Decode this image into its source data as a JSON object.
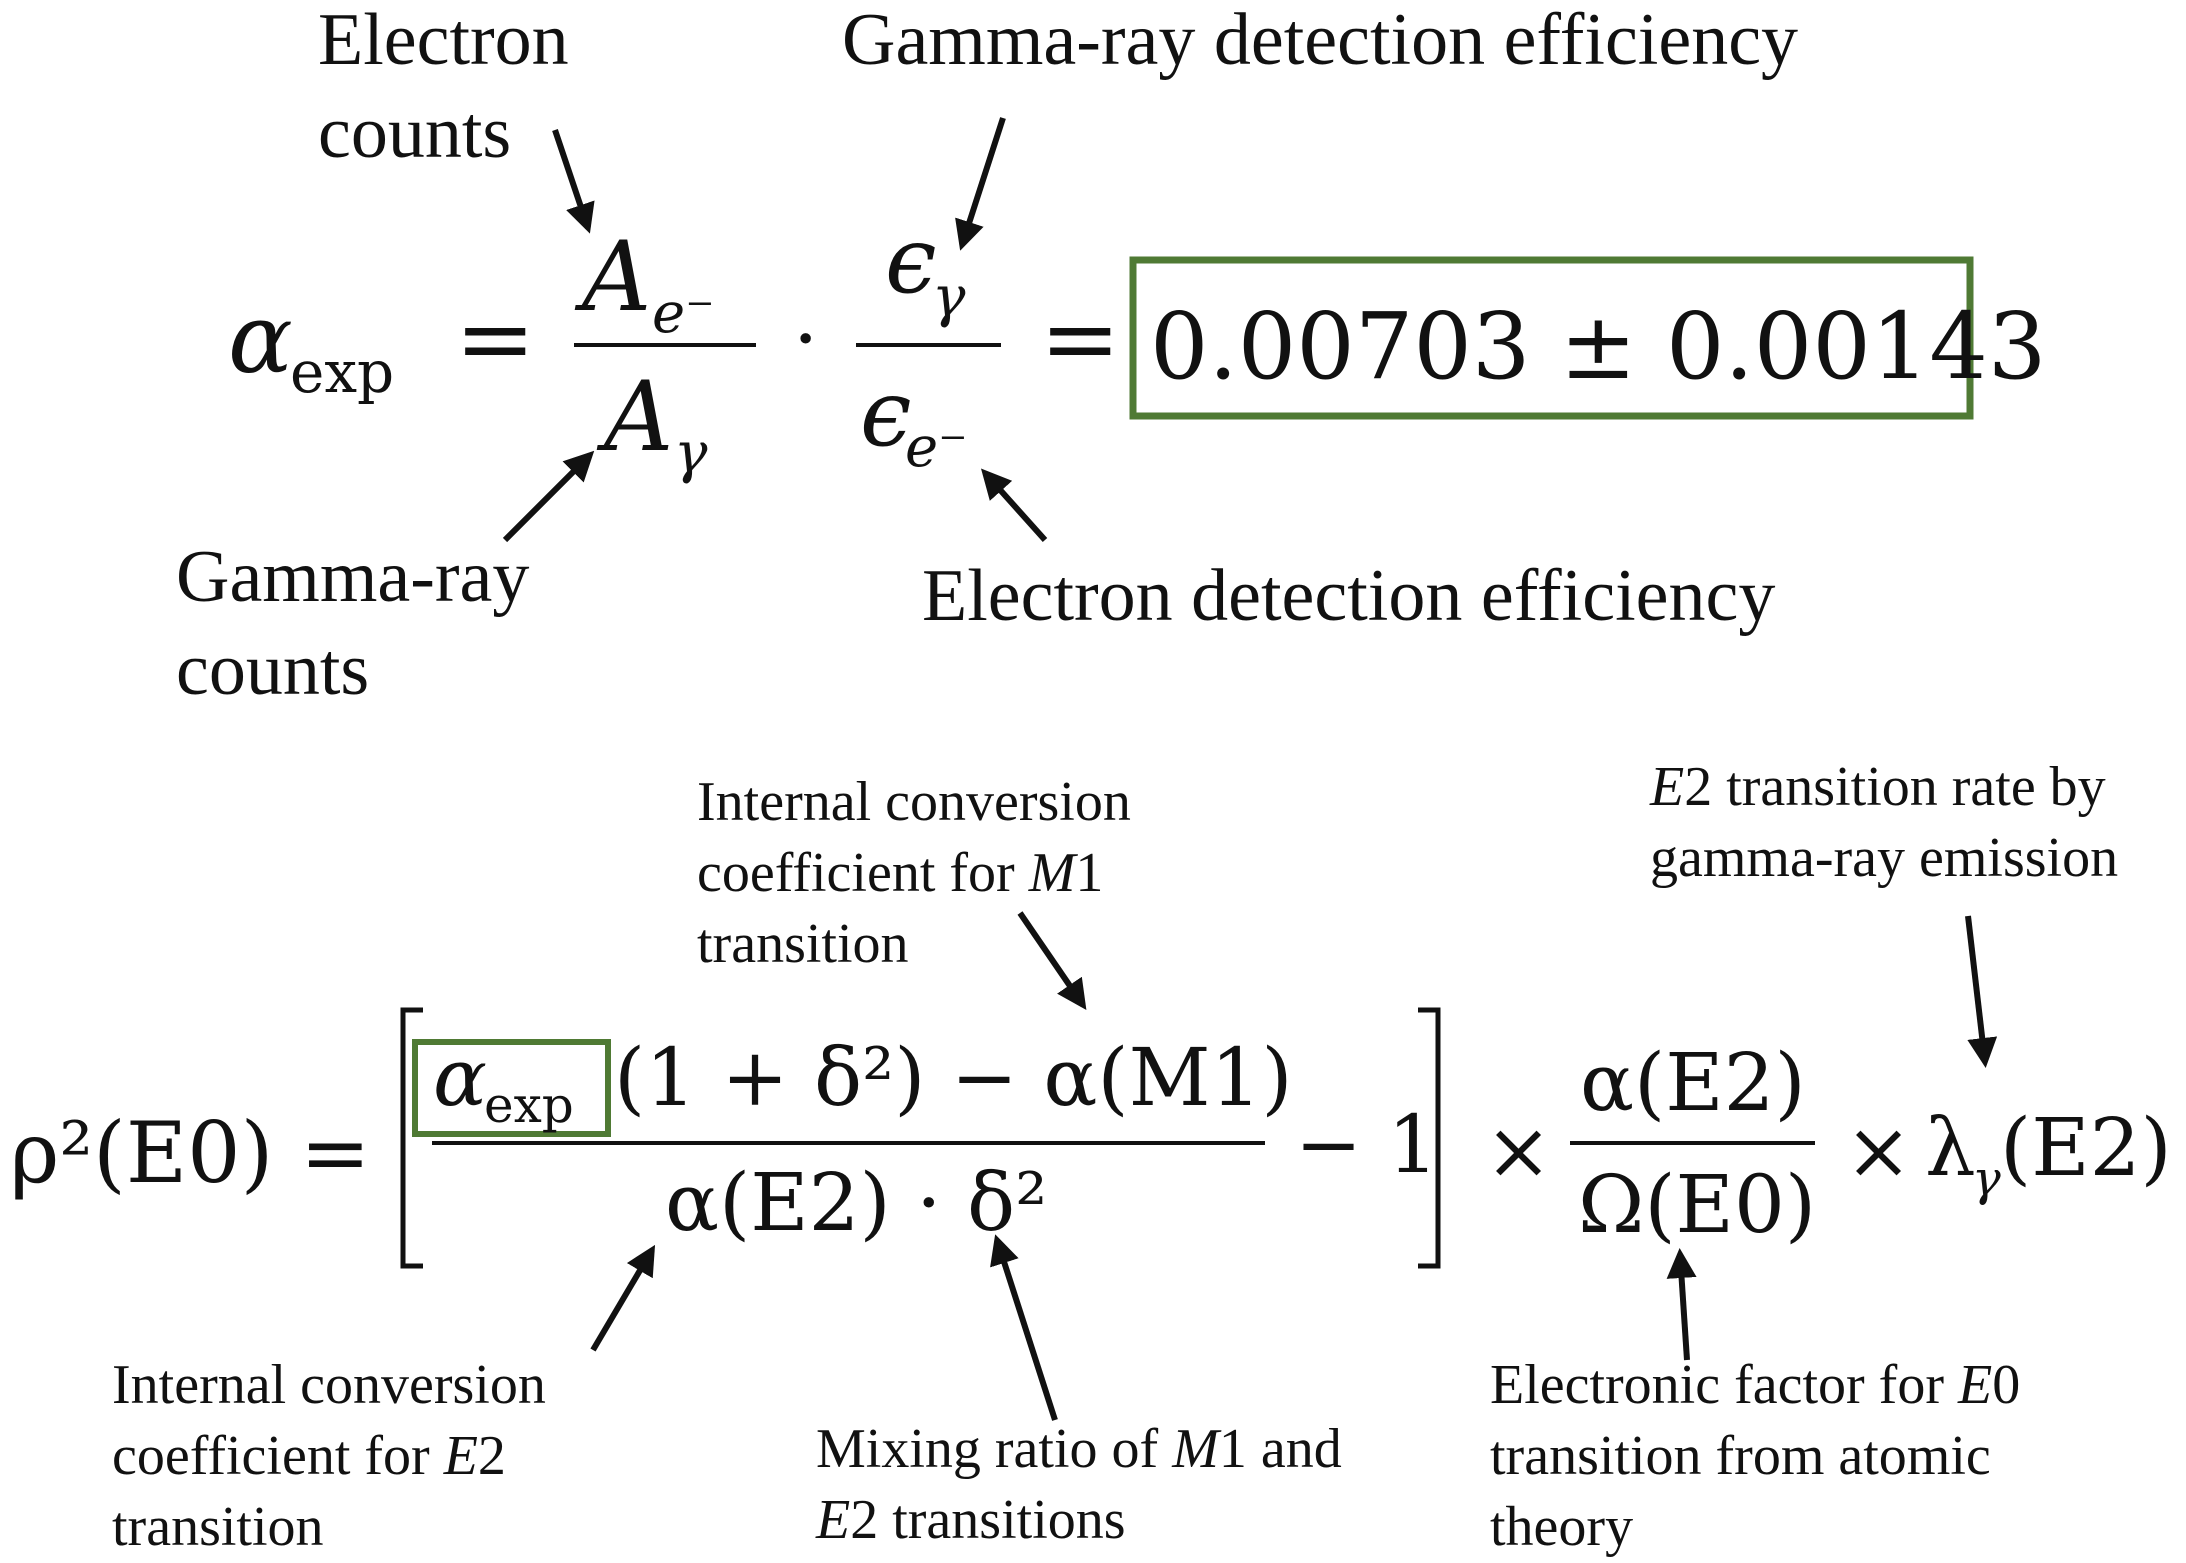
{
  "colors": {
    "text": "#111111",
    "highlight_box": "#4f7a34",
    "background": "#ffffff"
  },
  "equation1": {
    "lhs_symbol": "α",
    "lhs_subscript": "exp",
    "equals": "=",
    "num_symbol": "A",
    "num_subscript": "e⁻",
    "den_symbol": "A",
    "den_subscript": "γ",
    "dot": "·",
    "eps_num_symbol": "ϵ",
    "eps_num_subscript": "γ",
    "eps_den_symbol": "ϵ",
    "eps_den_subscript": "e⁻",
    "equals2": "=",
    "result": "0.00703 ± 0.00143"
  },
  "equation2": {
    "lhs": "ρ²(E0) =",
    "alpha_symbol": "α",
    "alpha_subscript": "exp",
    "numerator_rest": "(1 + δ²) − α(M1)",
    "denominator": "α(E2) · δ²",
    "minus_one": "− 1",
    "times1": "×",
    "frac2_num": "α(E2)",
    "frac2_den": "Ω(E0)",
    "times2": "×",
    "lambda_symbol": "λ",
    "lambda_subscript": "γ",
    "lambda_arg": "(E2)"
  },
  "annotations": {
    "electron_counts": [
      "Electron",
      "counts"
    ],
    "gamma_detection_efficiency": "Gamma-ray detection efficiency",
    "gamma_counts": [
      "Gamma-ray",
      "counts"
    ],
    "electron_detection_efficiency": "Electron detection efficiency",
    "icc_m1": {
      "line1": "Internal conversion",
      "line2_pre": "coefficient for ",
      "line2_var": "M",
      "line2_post": "1",
      "line3": "transition"
    },
    "e2_rate": {
      "line1_var": "E",
      "line1_post": "2 transition rate by",
      "line2": "gamma-ray emission"
    },
    "icc_e2": {
      "line1": "Internal conversion",
      "line2_pre": "coefficient for ",
      "line2_var": "E",
      "line2_post": "2",
      "line3": "transition"
    },
    "mixing_ratio": {
      "line1_pre": "Mixing ratio of ",
      "line1_var": "M",
      "line1_post": "1 and",
      "line2_var": "E",
      "line2_post": "2 transitions"
    },
    "electronic_factor": {
      "line1_pre": "Electronic factor for ",
      "line1_var": "E",
      "line1_post": "0",
      "line2": "transition from atomic",
      "line3": "theory"
    }
  }
}
